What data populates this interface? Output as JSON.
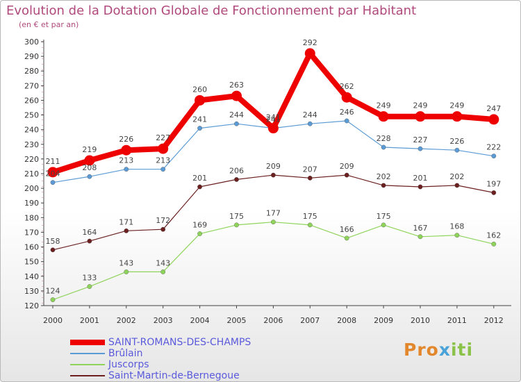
{
  "title": "Evolution de la Dotation Globale de Fonctionnement par Habitant",
  "subtitle": "(en € et par an)",
  "logo": {
    "part1": "Pro",
    "part2": "x",
    "part3": "iti"
  },
  "chart_data": {
    "type": "line",
    "x": [
      "2000",
      "2001",
      "2002",
      "2003",
      "2004",
      "2005",
      "2006",
      "2007",
      "2008",
      "2009",
      "2010",
      "2011",
      "2012"
    ],
    "ylim": [
      120,
      300
    ],
    "yticks": [
      120,
      130,
      140,
      150,
      160,
      170,
      180,
      190,
      200,
      210,
      220,
      230,
      240,
      250,
      260,
      270,
      280,
      290,
      300
    ],
    "grid": false,
    "legend_position": "bottom-left",
    "series": [
      {
        "name": "SAINT-ROMANS-DES-CHAMPS",
        "color": "#ee0000",
        "values": [
          211,
          219,
          226,
          227,
          260,
          263,
          241,
          292,
          262,
          249,
          249,
          249,
          247
        ]
      },
      {
        "name": "Brûlain",
        "color": "#5b9bd5",
        "values": [
          204,
          208,
          213,
          213,
          241,
          244,
          241,
          244,
          246,
          228,
          227,
          226,
          222
        ]
      },
      {
        "name": "Juscorps",
        "color": "#8fd45a",
        "values": [
          124,
          133,
          143,
          143,
          169,
          175,
          177,
          175,
          166,
          175,
          167,
          168,
          162
        ]
      },
      {
        "name": "Saint-Martin-de-Bernegoue",
        "color": "#6b1f1f",
        "values": [
          158,
          164,
          171,
          172,
          201,
          206,
          209,
          207,
          209,
          202,
          201,
          202,
          197
        ]
      }
    ]
  }
}
